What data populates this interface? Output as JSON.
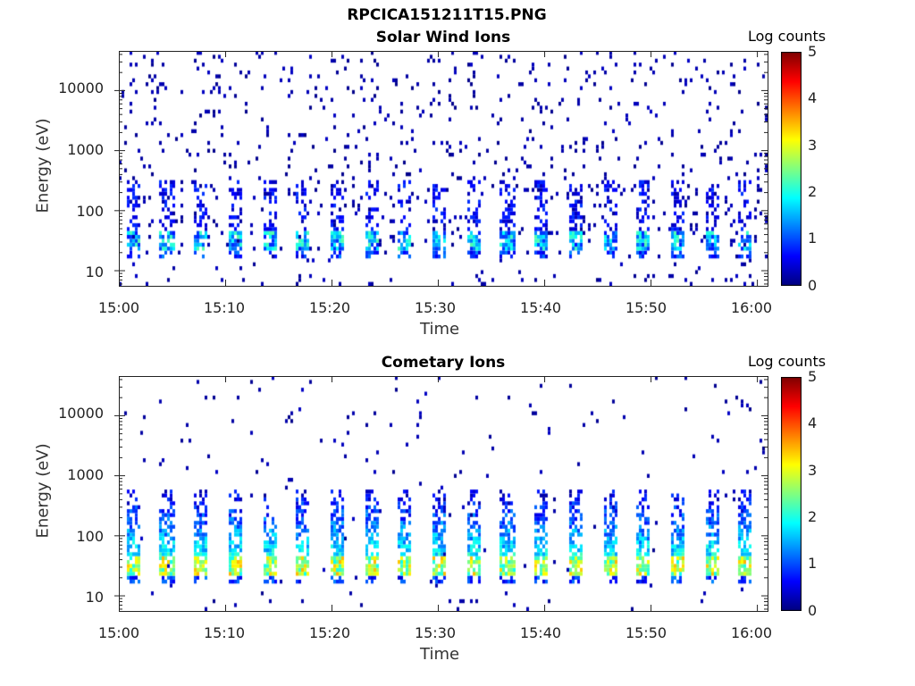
{
  "figure": {
    "title_line1": "RPCICA151211T15.PNG"
  },
  "panels": [
    {
      "title": "Solar Wind Ions",
      "xlabel": "Time",
      "ylabel": "Energy (eV)",
      "colorbar_label": "Log counts",
      "x_tick_labels": [
        "15:00",
        "15:10",
        "15:20",
        "15:30",
        "15:40",
        "15:50",
        "16:00"
      ],
      "y_tick_labels": [
        "10",
        "100",
        "1000",
        "10000"
      ]
    },
    {
      "title": "Cometary Ions",
      "xlabel": "Time",
      "ylabel": "Energy (eV)",
      "colorbar_label": "Log counts",
      "x_tick_labels": [
        "15:00",
        "15:10",
        "15:20",
        "15:30",
        "15:40",
        "15:50",
        "16:00"
      ],
      "y_tick_labels": [
        "10",
        "100",
        "1000",
        "10000"
      ]
    }
  ],
  "colorbar_tick_labels": [
    "0",
    "1",
    "2",
    "3",
    "4",
    "5"
  ],
  "chart_data": [
    {
      "type": "heatmap",
      "title": "Solar Wind Ions",
      "xlabel": "Time",
      "ylabel": "Energy (eV)",
      "x_range": [
        "15:00",
        "16:01"
      ],
      "ylim_eV": [
        5.5,
        45000
      ],
      "yscale": "log",
      "colorbar": {
        "label": "Log counts",
        "range": [
          0,
          5
        ],
        "colormap": "jet"
      },
      "sweep_period_min": 3.2,
      "peak_band_eV": [
        20,
        45
      ],
      "peak_log_counts": 2.3,
      "background": "sparse single counts (log counts ~0–0.5) from 6 eV to ~30000 eV"
    },
    {
      "type": "heatmap",
      "title": "Cometary Ions",
      "xlabel": "Time",
      "ylabel": "Energy (eV)",
      "x_range": [
        "15:00",
        "16:01"
      ],
      "ylim_eV": [
        5.5,
        45000
      ],
      "yscale": "log",
      "colorbar": {
        "label": "Log counts",
        "range": [
          0,
          5
        ],
        "colormap": "jet"
      },
      "sweep_period_min": 3.2,
      "peak_band_eV": [
        20,
        45
      ],
      "peak_log_counts": 3.5,
      "column_energy_range_eV": [
        20,
        600
      ],
      "background": "sparse single counts above 1000 eV"
    }
  ]
}
